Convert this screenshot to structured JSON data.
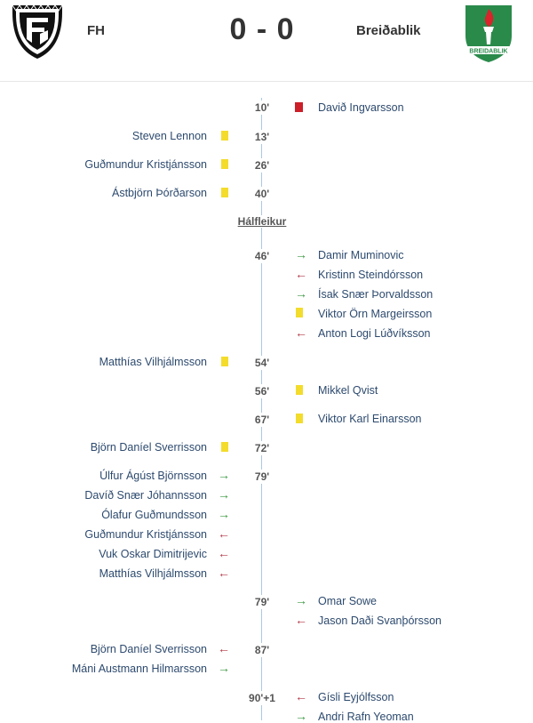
{
  "match": {
    "home": {
      "name": "FH"
    },
    "away": {
      "name": "Breiðablik",
      "logo_text": "BREIDABLIK"
    },
    "score": "0 - 0",
    "halftime_label": "Hálfleikur"
  },
  "colors": {
    "yellow_card": "#f3dc2c",
    "red_card": "#cc1f2a",
    "sub_in": "#3e9a44",
    "sub_out": "#b13846",
    "timeline": "#a9c9e3"
  },
  "events": {
    "e10": {
      "minute": "10'",
      "player": "Davið Ingvarsson",
      "type": "red-card",
      "side": "away"
    },
    "e13": {
      "minute": "13'",
      "player": "Steven Lennon",
      "type": "yellow-card",
      "side": "home"
    },
    "e26": {
      "minute": "26'",
      "player": "Guðmundur Kristjánsson",
      "type": "yellow-card",
      "side": "home"
    },
    "e40": {
      "minute": "40'",
      "player": "Ástbjörn Þórðarson",
      "type": "yellow-card",
      "side": "home"
    },
    "e46": {
      "minute": "46'",
      "players": [
        {
          "name": "Damir Muminovic",
          "type": "sub-in"
        },
        {
          "name": "Kristinn Steindórsson",
          "type": "sub-out"
        },
        {
          "name": "Ísak Snær Þorvaldsson",
          "type": "sub-in"
        },
        {
          "name": "Viktor Örn Margeirsson",
          "type": "yellow-card"
        },
        {
          "name": "Anton Logi Lúðvíksson",
          "type": "sub-out"
        }
      ],
      "side": "away"
    },
    "e54": {
      "minute": "54'",
      "player": "Matthías Vilhjálmsson",
      "type": "yellow-card",
      "side": "home"
    },
    "e56": {
      "minute": "56'",
      "player": "Mikkel Qvist",
      "type": "yellow-card",
      "side": "away"
    },
    "e67": {
      "minute": "67'",
      "player": "Viktor Karl Einarsson",
      "type": "yellow-card",
      "side": "away"
    },
    "e72": {
      "minute": "72'",
      "player": "Björn Daníel Sverrisson",
      "type": "yellow-card",
      "side": "home"
    },
    "e79h": {
      "minute": "79'",
      "players": [
        {
          "name": "Úlfur Ágúst Björnsson",
          "type": "sub-in"
        },
        {
          "name": "Davíð Snær Jóhannsson",
          "type": "sub-in"
        },
        {
          "name": "Ólafur Guðmundsson",
          "type": "sub-in"
        },
        {
          "name": "Guðmundur Kristjánsson",
          "type": "sub-out"
        },
        {
          "name": "Vuk Oskar Dimitrijevic",
          "type": "sub-out"
        },
        {
          "name": "Matthías Vilhjálmsson",
          "type": "sub-out"
        }
      ],
      "side": "home"
    },
    "e79a": {
      "minute": "79'",
      "players": [
        {
          "name": "Omar Sowe",
          "type": "sub-in"
        },
        {
          "name": "Jason Daði Svanþórsson",
          "type": "sub-out"
        }
      ],
      "side": "away"
    },
    "e87": {
      "minute": "87'",
      "players": [
        {
          "name": "Björn Daníel Sverrisson",
          "type": "sub-out"
        },
        {
          "name": "Máni Austmann Hilmarsson",
          "type": "sub-in"
        }
      ],
      "side": "home"
    },
    "e90": {
      "minute": "90'+1",
      "players": [
        {
          "name": "Gísli Eyjólfsson",
          "type": "sub-out"
        },
        {
          "name": "Andri Rafn Yeoman",
          "type": "sub-in"
        }
      ],
      "side": "away"
    }
  }
}
